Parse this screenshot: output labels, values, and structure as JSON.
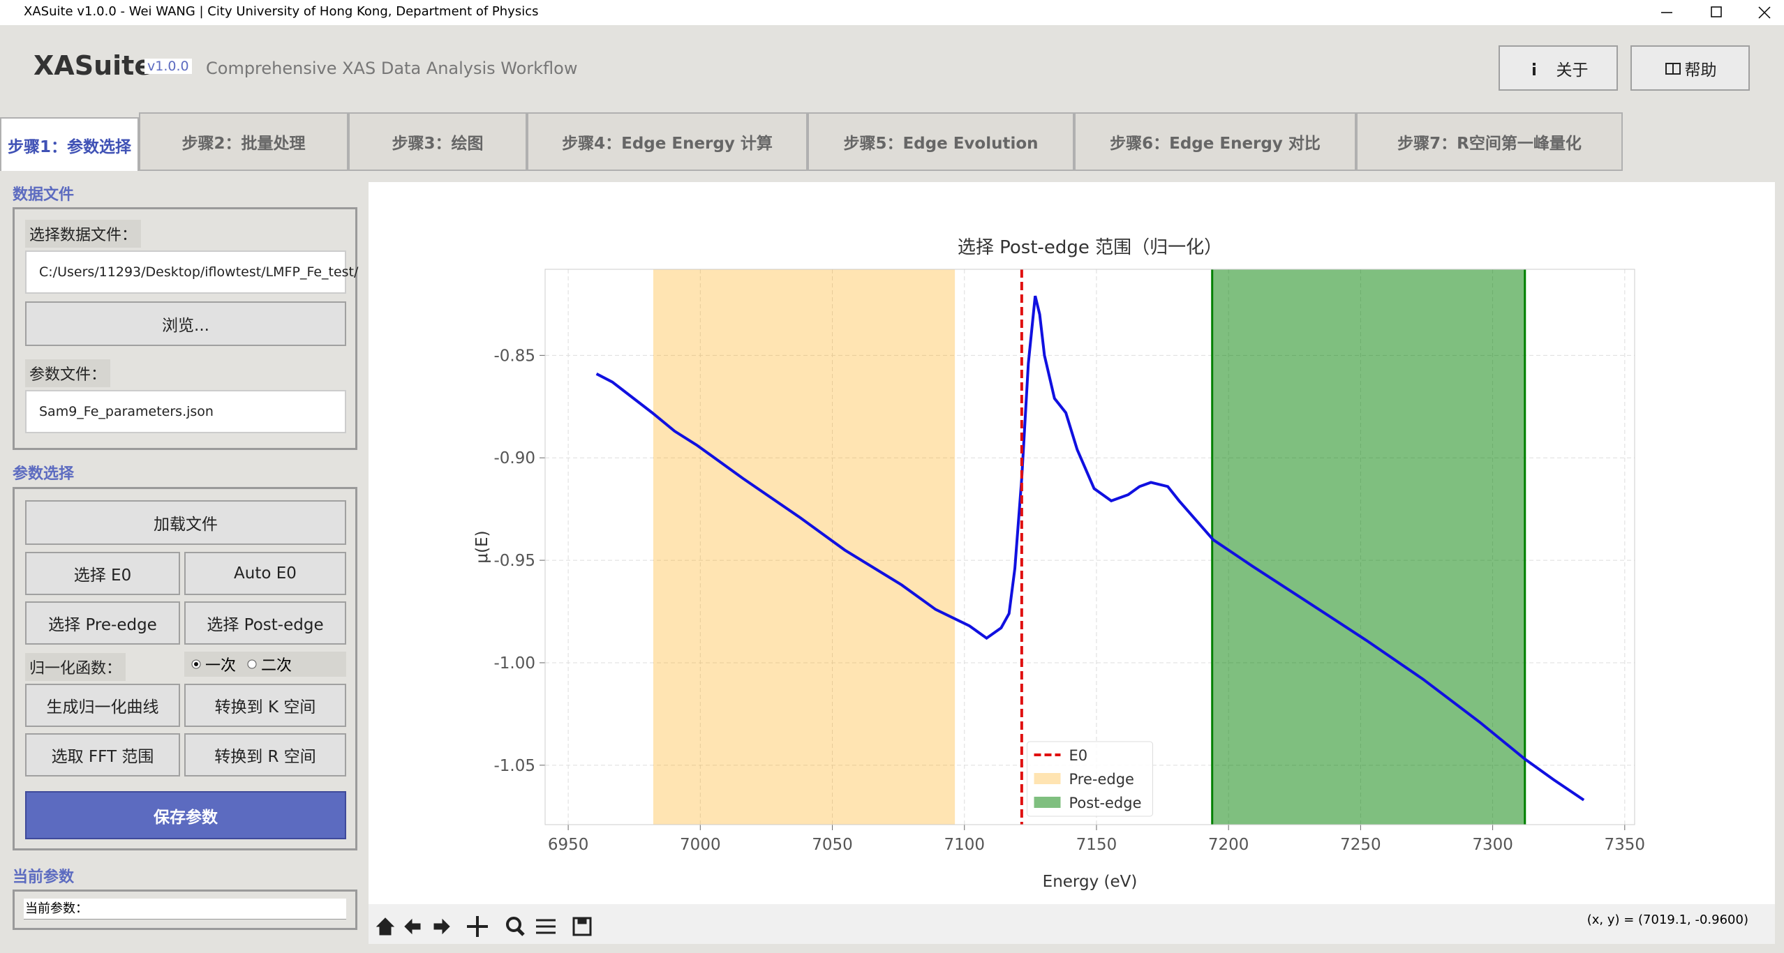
{
  "window": {
    "title": "XASuite v1.0.0 - Wei WANG | City University of Hong Kong, Department of Physics"
  },
  "header": {
    "app_name": "XASuite",
    "version": "v1.0.0",
    "subtitle": "Comprehensive XAS Data Analysis Workflow",
    "buttons": [
      "关于",
      "帮助"
    ]
  },
  "tabs": [
    "步骤1：参数选择",
    "步骤2：批量处理",
    "步骤3：绘图",
    "步骤4：Edge Energy 计算",
    "步骤5：Edge Evolution",
    "步骤6：Edge Energy 对比",
    "步骤7：R空间第一峰量化"
  ],
  "data_files": {
    "title": "数据文件",
    "data_label": "选择数据文件：",
    "data_path": "C:/Users/11293/Desktop/iflowtest/LMFP_Fe_test/",
    "browse": "浏览...",
    "param_label": "参数文件：",
    "param_path": "Sam9_Fe_parameters.json"
  },
  "params": {
    "title": "参数选择",
    "load": "加载文件",
    "select_e0": "选择 E0",
    "auto_e0": "Auto E0",
    "pre_edge": "选择 Pre-edge",
    "post_edge": "选择 Post-edge",
    "norm_label": "归一化函数：",
    "norm_options": [
      "一次",
      "二次"
    ],
    "gen_norm": "生成归一化曲线",
    "to_k": "转换到 K 空间",
    "fft": "选取 FFT 范围",
    "to_r": "转换到 R 空间",
    "save": "保存参数"
  },
  "current": {
    "title": "当前参数",
    "text": "当前参数："
  },
  "toolbar": {
    "status": "(x, y) = (7019.1, -0.9600)"
  },
  "chart_data": {
    "type": "line",
    "title": "选择 Post-edge 范围（归一化）",
    "x_label": "Energy (eV)",
    "y_label": "μ(E)",
    "x": [
      6960.7,
      6966.7,
      6981.8,
      6990.3,
      6998.9,
      7016.1,
      7037.6,
      7054.7,
      7076.2,
      7089.1,
      7101.9,
      7108.4,
      7113.9,
      7116.9,
      7119.1,
      7121.7,
      7124.2,
      7126.8,
      7128.5,
      7130.3,
      7134.1,
      7138.4,
      7142.7,
      7149.1,
      7155.6,
      7162.0,
      7166.3,
      7170.6,
      7177.0,
      7181.3,
      7194.2,
      7209.2,
      7230.7,
      7252.1,
      7273.6,
      7295.1,
      7312.2,
      7323.0,
      7334.5
    ],
    "values": [
      -0.859,
      -0.863,
      -0.878,
      -0.887,
      -0.894,
      -0.91,
      -0.929,
      -0.945,
      -0.962,
      -0.974,
      -0.982,
      -0.988,
      -0.983,
      -0.976,
      -0.954,
      -0.91,
      -0.854,
      -0.821,
      -0.83,
      -0.85,
      -0.871,
      -0.878,
      -0.896,
      -0.915,
      -0.921,
      -0.918,
      -0.914,
      -0.912,
      -0.914,
      -0.921,
      -0.94,
      -0.953,
      -0.971,
      -0.989,
      -1.008,
      -1.029,
      -1.047,
      -1.057,
      -1.067
    ],
    "color": "#1010e0",
    "e0": {
      "name": "E0",
      "value": 7121.7,
      "color": "#e01010"
    },
    "pre_edge": {
      "name": "Pre-edge",
      "range": [
        6982.2,
        7096.4
      ],
      "color": "#ffa500"
    },
    "post_edge": {
      "name": "Post-edge",
      "range": [
        7193.8,
        7312.2
      ],
      "color": "#008000"
    },
    "xlim": [
      6941.25,
      7353.75
    ],
    "ylim": [
      -1.079,
      -0.808
    ],
    "xticks": [
      6950,
      7000,
      7050,
      7100,
      7150,
      7200,
      7250,
      7300,
      7350
    ],
    "yticks": [
      {
        "value": -1.05,
        "label": "-1.05"
      },
      {
        "value": -1.0,
        "label": "-1.00"
      },
      {
        "value": -0.95,
        "label": "-0.95"
      },
      {
        "value": -0.9,
        "label": "-0.90"
      },
      {
        "value": -0.85,
        "label": "-0.85"
      }
    ],
    "grid": true,
    "legend": "lower center"
  }
}
